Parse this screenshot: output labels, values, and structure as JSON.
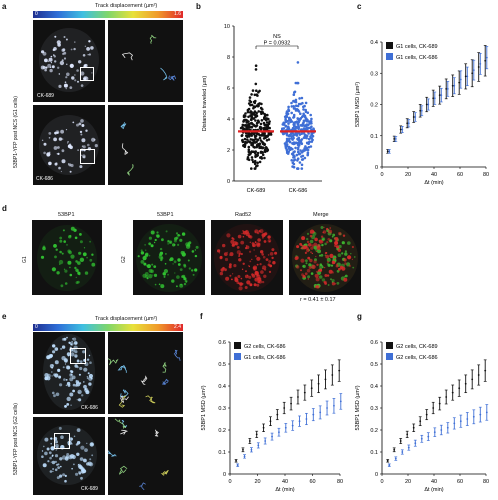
{
  "panel_labels": [
    "a",
    "b",
    "c",
    "d",
    "e",
    "f",
    "g"
  ],
  "panel_a": {
    "colorbar_title": "Track displacement (µm²)",
    "colorbar_min": "0",
    "colorbar_max": "1.6",
    "ylabel": "53BP1-YFP post NCS (G1 cells)",
    "cell_top": "CK-689",
    "cell_bottom": "CK-686"
  },
  "panel_d": {
    "g1_title": "53BP1",
    "g1_label": "G1",
    "g2_titles": [
      "53BP1",
      "Rad52",
      "Merge"
    ],
    "g2_label": "G2",
    "stat": "r = 0.41 ± 0.17",
    "colors": {
      "green": "#31c231",
      "red": "#d62a2a"
    }
  },
  "panel_e": {
    "colorbar_title": "Track displacement (µm²)",
    "colorbar_min": "0",
    "colorbar_max": "2.4",
    "ylabel": "53BP1-YFP post NCS (G2 cells)",
    "cell_top": "CK-686",
    "cell_bottom": "CK-689"
  },
  "chart_data": [
    {
      "panel": "b",
      "type": "scatter",
      "ylabel": "Distance traveled (µm)",
      "categories": [
        "CK-689",
        "CK-686"
      ],
      "ylim": [
        0,
        10
      ],
      "yticks": [
        0,
        2,
        4,
        6,
        8,
        10
      ],
      "medians": [
        3.2,
        3.2
      ],
      "stat_label": "NS",
      "stat_p": "P = 0.0932",
      "colors": [
        "#111111",
        "#3f6fd6"
      ]
    },
    {
      "panel": "c",
      "type": "line",
      "ylabel": "53BP1 MSD (µm²)",
      "xlabel": "Δt (min)",
      "xlim": [
        0,
        80
      ],
      "ylim": [
        0,
        0.4
      ],
      "xticks": [
        0,
        20,
        40,
        60,
        80
      ],
      "yticks": [
        0,
        0.1,
        0.2,
        0.3,
        0.4
      ],
      "x": [
        5,
        10,
        15,
        20,
        25,
        30,
        35,
        40,
        45,
        50,
        55,
        60,
        65,
        70,
        75,
        80
      ],
      "series": [
        {
          "name": "G1 cells, CK-689",
          "color": "#111111",
          "values": [
            0.05,
            0.09,
            0.12,
            0.14,
            0.16,
            0.18,
            0.2,
            0.22,
            0.23,
            0.25,
            0.26,
            0.27,
            0.29,
            0.3,
            0.32,
            0.34
          ]
        },
        {
          "name": "G1 cells, CK-686",
          "color": "#3f6fd6",
          "values": [
            0.05,
            0.09,
            0.12,
            0.14,
            0.16,
            0.18,
            0.2,
            0.22,
            0.23,
            0.25,
            0.26,
            0.28,
            0.29,
            0.31,
            0.33,
            0.35
          ]
        }
      ]
    },
    {
      "panel": "f",
      "type": "line",
      "ylabel": "53BP1 MSD (µm²)",
      "xlabel": "Δt (min)",
      "xlim": [
        0,
        80
      ],
      "ylim": [
        0,
        0.6
      ],
      "xticks": [
        0,
        20,
        40,
        60,
        80
      ],
      "yticks": [
        0,
        0.1,
        0.2,
        0.3,
        0.4,
        0.5,
        0.6
      ],
      "x": [
        5,
        10,
        15,
        20,
        25,
        30,
        35,
        40,
        45,
        50,
        55,
        60,
        65,
        70,
        75,
        80
      ],
      "series": [
        {
          "name": "G2 cells, CK-686",
          "color": "#111111",
          "values": [
            0.06,
            0.11,
            0.15,
            0.18,
            0.21,
            0.24,
            0.27,
            0.3,
            0.32,
            0.35,
            0.37,
            0.39,
            0.41,
            0.43,
            0.45,
            0.47
          ]
        },
        {
          "name": "G1 cells, CK-686",
          "color": "#3f6fd6",
          "values": [
            0.04,
            0.08,
            0.11,
            0.13,
            0.15,
            0.17,
            0.19,
            0.21,
            0.22,
            0.24,
            0.25,
            0.27,
            0.28,
            0.3,
            0.31,
            0.33
          ]
        }
      ]
    },
    {
      "panel": "g",
      "type": "line",
      "ylabel": "53BP1 MSD (µm²)",
      "xlabel": "Δt (min)",
      "xlim": [
        0,
        80
      ],
      "ylim": [
        0,
        0.6
      ],
      "xticks": [
        0,
        20,
        40,
        60,
        80
      ],
      "yticks": [
        0,
        0.1,
        0.2,
        0.3,
        0.4,
        0.5,
        0.6
      ],
      "x": [
        5,
        10,
        15,
        20,
        25,
        30,
        35,
        40,
        45,
        50,
        55,
        60,
        65,
        70,
        75,
        80
      ],
      "series": [
        {
          "name": "G2 cells, CK-689",
          "color": "#111111",
          "values": [
            0.06,
            0.11,
            0.15,
            0.18,
            0.21,
            0.24,
            0.27,
            0.3,
            0.32,
            0.35,
            0.37,
            0.39,
            0.41,
            0.43,
            0.45,
            0.47
          ]
        },
        {
          "name": "G2 cells, CK-686",
          "color": "#3f6fd6",
          "values": [
            0.04,
            0.07,
            0.1,
            0.12,
            0.14,
            0.16,
            0.17,
            0.19,
            0.2,
            0.21,
            0.23,
            0.24,
            0.25,
            0.26,
            0.27,
            0.28
          ]
        }
      ]
    }
  ]
}
